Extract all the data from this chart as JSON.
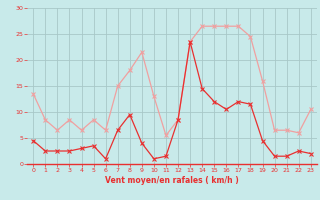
{
  "x": [
    0,
    1,
    2,
    3,
    4,
    5,
    6,
    7,
    8,
    9,
    10,
    11,
    12,
    13,
    14,
    15,
    16,
    17,
    18,
    19,
    20,
    21,
    22,
    23
  ],
  "wind_avg": [
    4.5,
    2.5,
    2.5,
    2.5,
    3.0,
    3.5,
    1.0,
    6.5,
    9.5,
    4.0,
    1.0,
    1.5,
    8.5,
    23.5,
    14.5,
    12.0,
    10.5,
    12.0,
    11.5,
    4.5,
    1.5,
    1.5,
    2.5,
    2.0
  ],
  "wind_gust": [
    13.5,
    8.5,
    6.5,
    8.5,
    6.5,
    8.5,
    6.5,
    15.0,
    18.0,
    21.5,
    13.0,
    5.5,
    8.5,
    23.5,
    26.5,
    26.5,
    26.5,
    26.5,
    24.5,
    16.0,
    6.5,
    6.5,
    6.0,
    10.5
  ],
  "avg_color": "#e83030",
  "gust_color": "#f0a0a0",
  "background_color": "#c8eaea",
  "grid_color": "#a8c8c8",
  "xlabel": "Vent moyen/en rafales ( km/h )",
  "xlabel_color": "#e83030",
  "tick_color": "#e83030",
  "ylim": [
    0,
    30
  ],
  "yticks": [
    0,
    5,
    10,
    15,
    20,
    25,
    30
  ],
  "xticks": [
    0,
    1,
    2,
    3,
    4,
    5,
    6,
    7,
    8,
    9,
    10,
    11,
    12,
    13,
    14,
    15,
    16,
    17,
    18,
    19,
    20,
    21,
    22,
    23
  ]
}
